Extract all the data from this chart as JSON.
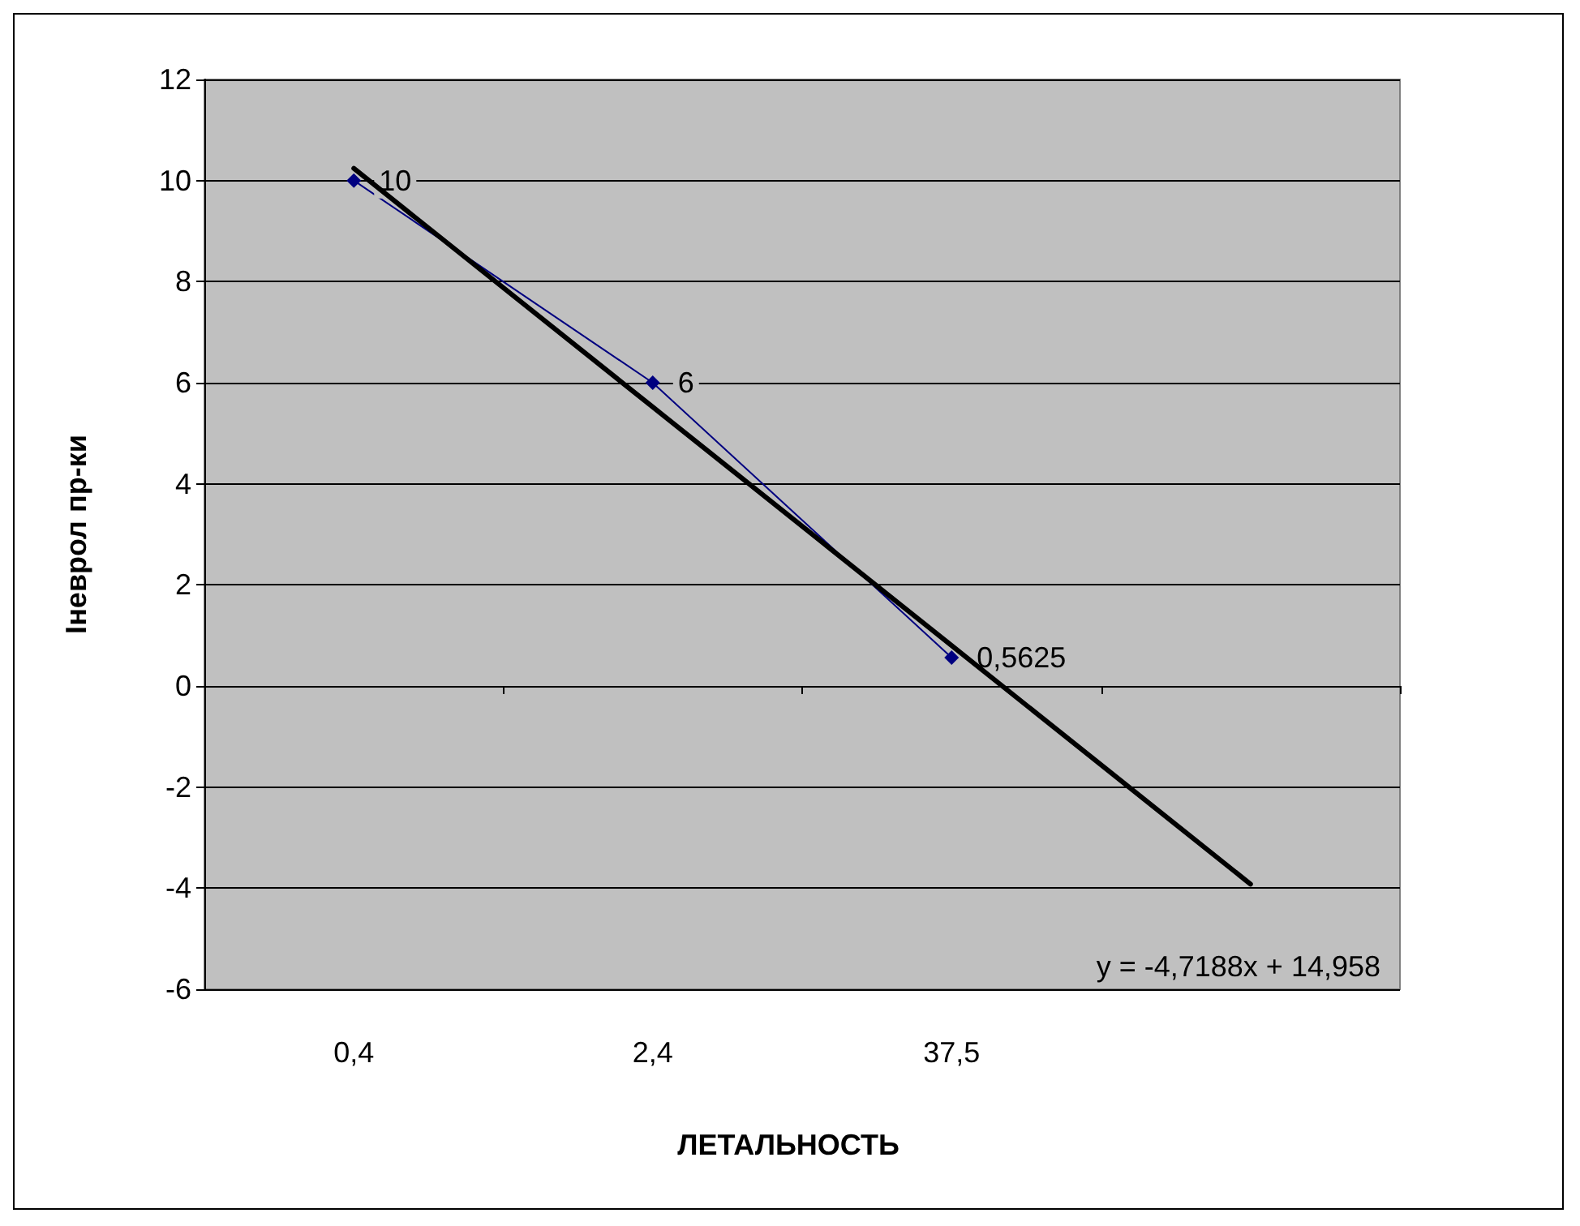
{
  "chart_data": {
    "type": "line",
    "xlabel": "ЛЕТАЛЬНОСТЬ",
    "ylabel": "Іневрол пр-ки",
    "categories": [
      "0,4",
      "2,4",
      "37,5",
      null
    ],
    "series": [
      {
        "color": "#000080",
        "values": [
          10,
          6,
          0.5625,
          null
        ],
        "value_labels": [
          "10",
          "6",
          "0,5625",
          null
        ],
        "marker": "diamond"
      },
      {
        "color": "#000000",
        "values": [
          10.24,
          5.52,
          0.8,
          -3.92
        ],
        "marker": "none"
      }
    ],
    "annotations": [
      "y = -4,7188x + 14,958"
    ],
    "ylim": [
      -6,
      12
    ],
    "yticks": [
      -6,
      -4,
      -2,
      0,
      2,
      4,
      6,
      8,
      10,
      12
    ],
    "grid": "y",
    "line_style": "solid"
  }
}
